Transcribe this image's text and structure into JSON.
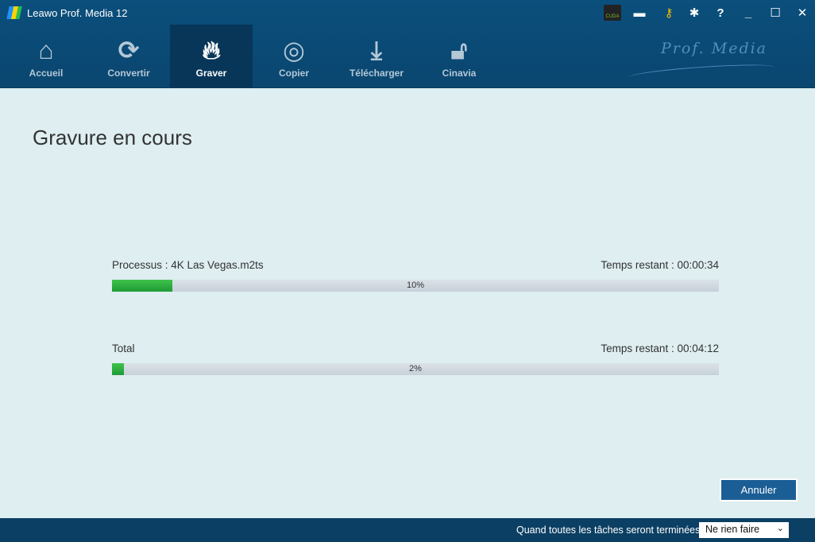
{
  "window": {
    "title": "Leawo Prof. Media 12",
    "brand": "Prof. Media"
  },
  "titlebar_icons": [
    "cuda-icon",
    "feedback-icon",
    "key-icon",
    "gear-icon",
    "help-icon",
    "minimize-icon",
    "maximize-icon",
    "close-icon"
  ],
  "cuda_label": "CUDA",
  "nav": [
    {
      "label": "Accueil",
      "icon": "home-icon"
    },
    {
      "label": "Convertir",
      "icon": "convert-icon"
    },
    {
      "label": "Graver",
      "icon": "flame-icon",
      "active": true
    },
    {
      "label": "Copier",
      "icon": "disc-icon"
    },
    {
      "label": "Télécharger",
      "icon": "download-icon"
    },
    {
      "label": "Cinavia",
      "icon": "unlock-icon"
    }
  ],
  "main": {
    "heading": "Gravure en cours",
    "process": {
      "label": "Processus : 4K Las Vegas.m2ts",
      "remaining": "Temps restant : 00:00:34",
      "percent": 10,
      "percent_label": "10%"
    },
    "total": {
      "label": "Total",
      "remaining": "Temps restant : 00:04:12",
      "percent": 2,
      "percent_label": "2%"
    },
    "cancel": "Annuler"
  },
  "footer": {
    "label": "Quand toutes les tâches seront terminées :",
    "select_value": "Ne rien faire"
  },
  "colors": {
    "header": "#0b4f7c",
    "progress": "#2bb040",
    "button": "#1b5e95"
  }
}
